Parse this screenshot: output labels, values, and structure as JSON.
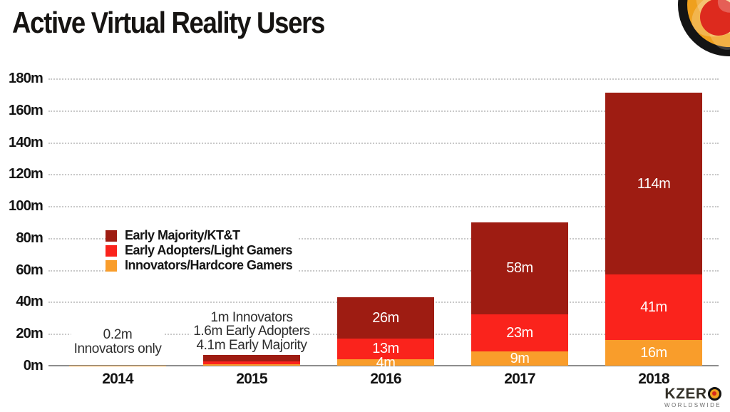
{
  "title": "Active Virtual Reality Users",
  "branding": {
    "logo_text": "KZER",
    "logo_sub": "WORLDSWIDE",
    "logo_colors": {
      "ring": "#141414",
      "fill": "#f0a11e",
      "center": "#d8281c"
    }
  },
  "chart_data": {
    "type": "bar",
    "stacked": true,
    "title": "Active Virtual Reality Users",
    "xlabel": "",
    "ylabel": "",
    "grid": "horizontal-dotted",
    "ylim": [
      0,
      180
    ],
    "yticks": {
      "values": [
        0,
        20,
        40,
        60,
        80,
        100,
        120,
        140,
        160,
        180
      ],
      "labels": [
        "0m",
        "20m",
        "40m",
        "60m",
        "80m",
        "100m",
        "120m",
        "140m",
        "160m",
        "180m"
      ]
    },
    "categories": [
      "2014",
      "2015",
      "2016",
      "2017",
      "2018"
    ],
    "series": [
      {
        "name": "Innovators/Hardcore Gamers",
        "color": "#f99d2b",
        "values": [
          0.2,
          1,
          4,
          9,
          16
        ],
        "labels": [
          null,
          null,
          "4m",
          "9m",
          "16m"
        ]
      },
      {
        "name": "Early Adopters/Light Gamers",
        "color": "#fa231c",
        "values": [
          0,
          1.6,
          13,
          23,
          41
        ],
        "labels": [
          null,
          null,
          "13m",
          "23m",
          "41m"
        ]
      },
      {
        "name": "Early Majority/KT&T",
        "color": "#9e1c12",
        "values": [
          0,
          4.1,
          26,
          58,
          114
        ],
        "labels": [
          null,
          null,
          "26m",
          "58m",
          "114m"
        ]
      }
    ],
    "legend": {
      "position": "middle-left",
      "items": [
        {
          "label": "Early Majority/KT&T",
          "color": "#9e1c12"
        },
        {
          "label": "Early Adopters/Light Gamers",
          "color": "#fa231c"
        },
        {
          "label": "Innovators/Hardcore Gamers",
          "color": "#f99d2b"
        }
      ]
    },
    "annotations": [
      {
        "category": "2014",
        "lines": [
          "0.2m",
          "Innovators only"
        ]
      },
      {
        "category": "2015",
        "lines": [
          "1m Innovators",
          "1.6m Early Adopters",
          "4.1m Early Majority"
        ]
      }
    ]
  }
}
